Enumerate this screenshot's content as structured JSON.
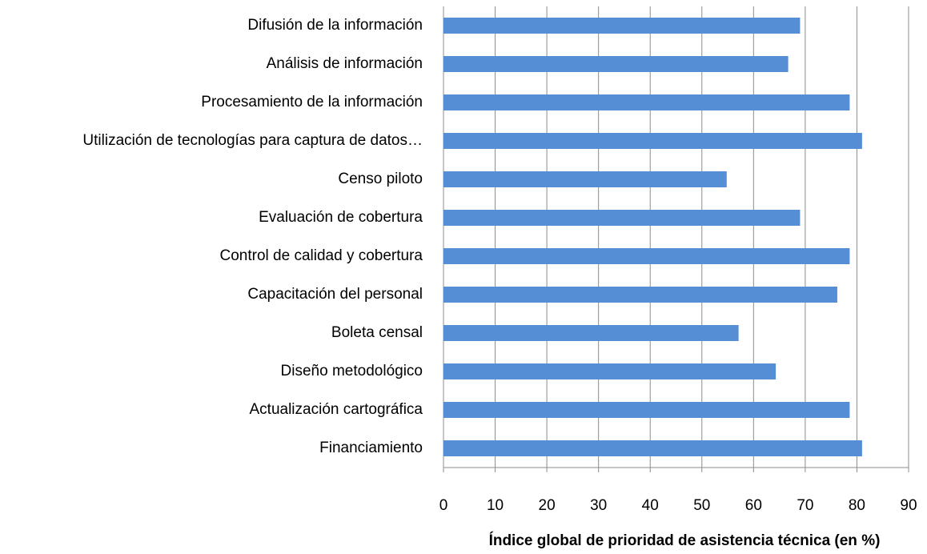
{
  "chart_data": {
    "type": "bar",
    "orientation": "horizontal",
    "x_label": "Índice global de prioridad de asistencia técnica (en %)",
    "categories": [
      "Difusión de la información",
      "Análisis de información",
      "Procesamiento de la información",
      "Utilización de tecnologías para captura de datos…",
      "Censo piloto",
      "Evaluación de cobertura",
      "Control de calidad y cobertura",
      "Capacitación del personal",
      "Boleta censal",
      "Diseño metodológico",
      "Actualización cartográfica",
      "Financiamiento"
    ],
    "values": [
      69,
      66.7,
      78.6,
      81,
      54.8,
      69,
      78.6,
      76.2,
      57.1,
      64.3,
      78.6,
      81
    ],
    "color": "#558ed5",
    "xlim": [
      0,
      90
    ],
    "xticks": [
      0,
      10,
      20,
      30,
      40,
      50,
      60,
      70,
      80,
      90
    ],
    "grid": true
  }
}
